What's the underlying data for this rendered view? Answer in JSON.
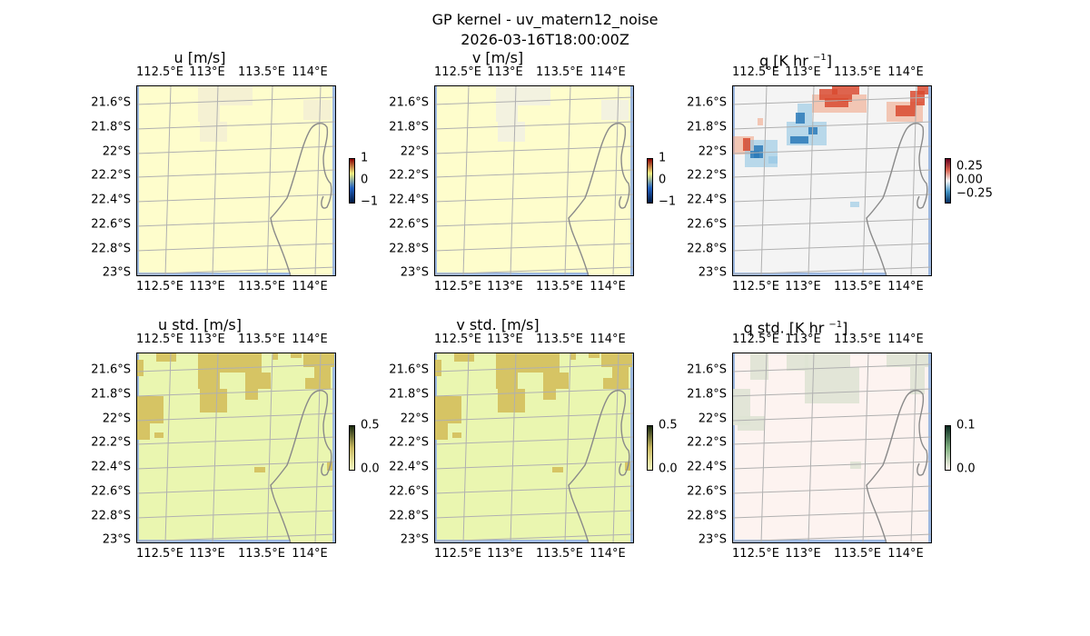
{
  "suptitle": {
    "line1": "GP kernel - uv_matern12_noise",
    "line2": "2026-03-16T18:00:00Z"
  },
  "colors": {
    "ocean": "#9db8e0",
    "land_u": "#fefdcc",
    "land_v": "#fefdcc",
    "land_q": "#f4f4f4",
    "land_ustd": "#eaf6b0",
    "land_vstd": "#eaf6b0",
    "land_qstd": "#fdf3f0",
    "patch_u": "#f4f0d4",
    "patch_v": "#f2f1e2",
    "patch_ustd": "#d6c464",
    "patch_vstd": "#d6c464",
    "patch_qstd": "#dfe3d4",
    "q_pos": "#d94a30",
    "q_pos_light": "#f0a080",
    "q_neg": "#2a7ab8",
    "q_neg_light": "#90c4e2",
    "coast": "#8a8a8a",
    "grid": "#b0b0b0"
  },
  "chart_data": [
    {
      "type": "heatmap",
      "title": "u [m/s]",
      "variable": "u",
      "lon_ticks": [
        "112.5°E",
        "113°E",
        "113.5°E",
        "114°E"
      ],
      "lat_ticks": [
        "21.6°S",
        "21.8°S",
        "22°S",
        "22.2°S",
        "22.4°S",
        "22.6°S",
        "22.8°S",
        "23°S"
      ],
      "colorbar": {
        "ticks": [
          "1",
          "0",
          "−1"
        ],
        "range": [
          -1,
          1
        ],
        "colors": [
          "#8b0000",
          "#f0f080",
          "#2060c0",
          "#001840"
        ]
      },
      "field_summary": "near zero everywhere"
    },
    {
      "type": "heatmap",
      "title": "v [m/s]",
      "variable": "v",
      "lon_ticks": [
        "112.5°E",
        "113°E",
        "113.5°E",
        "114°E"
      ],
      "lat_ticks": [
        "21.6°S",
        "21.8°S",
        "22°S",
        "22.2°S",
        "22.4°S",
        "22.6°S",
        "22.8°S",
        "23°S"
      ],
      "colorbar": {
        "ticks": [
          "1",
          "0",
          "−1"
        ],
        "range": [
          -1,
          1
        ],
        "colors": [
          "#8b0000",
          "#f0f080",
          "#2060c0",
          "#001840"
        ]
      },
      "field_summary": "near zero everywhere"
    },
    {
      "type": "heatmap",
      "title_main": "q [K hr",
      "title_sup": "−1",
      "title_end": "]",
      "variable": "q",
      "lon_ticks": [
        "112.5°E",
        "113°E",
        "113.5°E",
        "114°E"
      ],
      "lat_ticks": [
        "21.6°S",
        "21.8°S",
        "22°S",
        "22.2°S",
        "22.4°S",
        "22.6°S",
        "22.8°S",
        "23°S"
      ],
      "colorbar": {
        "ticks": [
          "0.25",
          "0.00",
          "−0.25"
        ],
        "range": [
          -0.35,
          0.35
        ],
        "colors": [
          "#67001f",
          "#d6604d",
          "#f7f7f7",
          "#4393c3",
          "#053061"
        ]
      },
      "field_summary": "positive anomalies top centre and top right, negative anomalies left centre"
    },
    {
      "type": "heatmap",
      "title": "u std. [m/s]",
      "variable": "u_std",
      "lon_ticks": [
        "112.5°E",
        "113°E",
        "113.5°E",
        "114°E"
      ],
      "lat_ticks": [
        "21.6°S",
        "21.8°S",
        "22°S",
        "22.2°S",
        "22.4°S",
        "22.6°S",
        "22.8°S",
        "23°S"
      ],
      "colorbar": {
        "ticks": [
          "0.5",
          "0.0"
        ],
        "range": [
          0,
          0.5
        ],
        "colors": [
          "#1a2a10",
          "#c8b860",
          "#f4f8c0"
        ]
      },
      "field_summary": "higher std patches along top and left"
    },
    {
      "type": "heatmap",
      "title": "v std. [m/s]",
      "variable": "v_std",
      "lon_ticks": [
        "112.5°E",
        "113°E",
        "113.5°E",
        "114°E"
      ],
      "lat_ticks": [
        "21.6°S",
        "21.8°S",
        "22°S",
        "22.2°S",
        "22.4°S",
        "22.6°S",
        "22.8°S",
        "23°S"
      ],
      "colorbar": {
        "ticks": [
          "0.5",
          "0.0"
        ],
        "range": [
          0,
          0.5
        ],
        "colors": [
          "#1a2a10",
          "#c8b860",
          "#f4f8c0"
        ]
      },
      "field_summary": "higher std patches along top and left"
    },
    {
      "type": "heatmap",
      "title_main": "q std. [K hr",
      "title_sup": "−1",
      "title_end": "]",
      "variable": "q_std",
      "lon_ticks": [
        "112.5°E",
        "113°E",
        "113.5°E",
        "114°E"
      ],
      "lat_ticks": [
        "21.6°S",
        "21.8°S",
        "22°S",
        "22.2°S",
        "22.4°S",
        "22.6°S",
        "22.8°S",
        "23°S"
      ],
      "colorbar": {
        "ticks": [
          "0.1",
          "0.0"
        ],
        "range": [
          0,
          0.1
        ],
        "colors": [
          "#0a2a20",
          "#80b080",
          "#fff5f0"
        ]
      },
      "field_summary": "faint patches along top and left"
    }
  ]
}
